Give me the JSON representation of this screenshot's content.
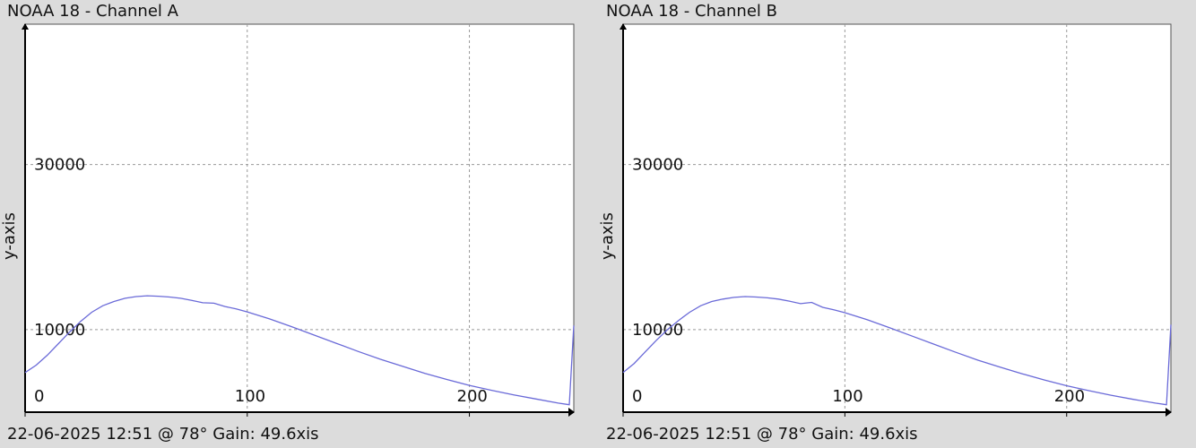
{
  "chart_data": [
    {
      "type": "line",
      "title": "NOAA 18 - Channel A",
      "ylabel": "y-axis",
      "footer": "22-06-2025 12:51 @ 78° Gain: 49.6",
      "footer_suffix": "xis",
      "xlim": [
        0,
        247
      ],
      "ylim": [
        0,
        47000
      ],
      "x_ticks": [
        0,
        100,
        200
      ],
      "y_ticks": [
        10000,
        30000
      ],
      "grid": true,
      "line_color": "#6a6ad8",
      "series": [
        {
          "x": [
            0,
            5,
            10,
            15,
            20,
            25,
            30,
            35,
            40,
            45,
            50,
            55,
            60,
            65,
            70,
            75,
            80,
            85,
            90,
            95,
            100,
            110,
            120,
            130,
            140,
            150,
            160,
            170,
            180,
            190,
            200,
            210,
            220,
            230,
            240,
            245,
            247
          ],
          "y": [
            4800,
            5700,
            6900,
            8300,
            9700,
            11000,
            12100,
            12900,
            13400,
            13800,
            14000,
            14100,
            14050,
            13950,
            13800,
            13550,
            13250,
            13200,
            12800,
            12500,
            12150,
            11300,
            10350,
            9350,
            8350,
            7350,
            6400,
            5550,
            4700,
            3950,
            3250,
            2650,
            2100,
            1600,
            1100,
            900,
            10500
          ]
        }
      ]
    },
    {
      "type": "line",
      "title": "NOAA 18 - Channel B",
      "ylabel": "y-axis",
      "footer": "22-06-2025 12:51 @ 78° Gain: 49.6",
      "footer_suffix": "xis",
      "xlim": [
        0,
        247
      ],
      "ylim": [
        0,
        47000
      ],
      "x_ticks": [
        0,
        100,
        200
      ],
      "y_ticks": [
        10000,
        30000
      ],
      "grid": true,
      "line_color": "#6a6ad8",
      "series": [
        {
          "x": [
            0,
            5,
            10,
            15,
            20,
            25,
            30,
            35,
            40,
            45,
            50,
            55,
            60,
            65,
            70,
            75,
            80,
            85,
            90,
            95,
            100,
            110,
            120,
            130,
            140,
            150,
            160,
            170,
            180,
            190,
            200,
            210,
            220,
            230,
            240,
            245,
            247
          ],
          "y": [
            4800,
            5900,
            7300,
            8700,
            10000,
            11100,
            12100,
            12900,
            13400,
            13700,
            13900,
            14000,
            13950,
            13850,
            13700,
            13450,
            13150,
            13300,
            12700,
            12400,
            12050,
            11200,
            10250,
            9250,
            8250,
            7250,
            6300,
            5450,
            4650,
            3900,
            3200,
            2600,
            2050,
            1550,
            1100,
            900,
            10600
          ]
        }
      ]
    }
  ]
}
